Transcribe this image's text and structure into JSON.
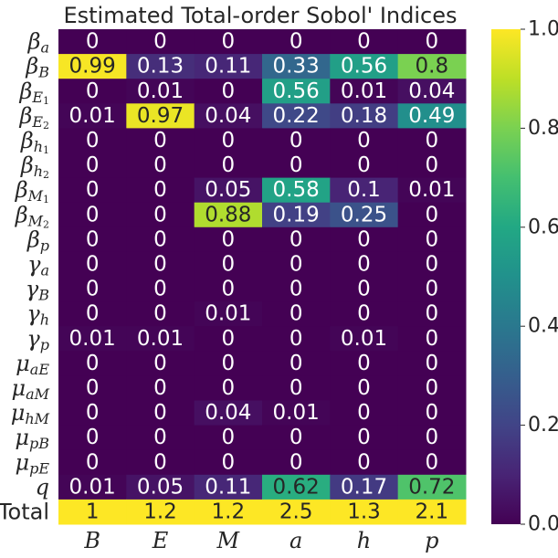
{
  "chart_data": {
    "type": "heatmap",
    "title": "Estimated Total-order Sobol' Indices",
    "columns": [
      "B",
      "E",
      "M",
      "a",
      "h",
      "p"
    ],
    "rows": [
      {
        "base": "β",
        "sub": "a",
        "subsub": ""
      },
      {
        "base": "β",
        "sub": "B",
        "subsub": ""
      },
      {
        "base": "β",
        "sub": "E",
        "subsub": "1"
      },
      {
        "base": "β",
        "sub": "E",
        "subsub": "2"
      },
      {
        "base": "β",
        "sub": "h",
        "subsub": "1"
      },
      {
        "base": "β",
        "sub": "h",
        "subsub": "2"
      },
      {
        "base": "β",
        "sub": "M",
        "subsub": "1"
      },
      {
        "base": "β",
        "sub": "M",
        "subsub": "2"
      },
      {
        "base": "β",
        "sub": "p",
        "subsub": ""
      },
      {
        "base": "γ",
        "sub": "a",
        "subsub": ""
      },
      {
        "base": "γ",
        "sub": "B",
        "subsub": ""
      },
      {
        "base": "γ",
        "sub": "h",
        "subsub": ""
      },
      {
        "base": "γ",
        "sub": "p",
        "subsub": ""
      },
      {
        "base": "μ",
        "sub": "aE",
        "subsub": ""
      },
      {
        "base": "μ",
        "sub": "aM",
        "subsub": ""
      },
      {
        "base": "μ",
        "sub": "hM",
        "subsub": ""
      },
      {
        "base": "μ",
        "sub": "pB",
        "subsub": ""
      },
      {
        "base": "μ",
        "sub": "pE",
        "subsub": ""
      },
      {
        "base": "q",
        "sub": "",
        "subsub": ""
      },
      {
        "base": "Total",
        "sub": "",
        "subsub": "",
        "plain": true
      }
    ],
    "values": [
      [
        0,
        0,
        0,
        0,
        0,
        0
      ],
      [
        0.99,
        0.13,
        0.11,
        0.33,
        0.56,
        0.8
      ],
      [
        0,
        0.01,
        0,
        0.56,
        0.01,
        0.04
      ],
      [
        0.01,
        0.97,
        0.04,
        0.22,
        0.18,
        0.49
      ],
      [
        0,
        0,
        0,
        0,
        0,
        0
      ],
      [
        0,
        0,
        0,
        0,
        0,
        0
      ],
      [
        0,
        0,
        0.05,
        0.58,
        0.1,
        0.01
      ],
      [
        0,
        0,
        0.88,
        0.19,
        0.25,
        0
      ],
      [
        0,
        0,
        0,
        0,
        0,
        0
      ],
      [
        0,
        0,
        0,
        0,
        0,
        0
      ],
      [
        0,
        0,
        0,
        0,
        0,
        0
      ],
      [
        0,
        0,
        0.01,
        0,
        0,
        0
      ],
      [
        0.01,
        0.01,
        0,
        0,
        0.01,
        0
      ],
      [
        0,
        0,
        0,
        0,
        0,
        0
      ],
      [
        0,
        0,
        0,
        0,
        0,
        0
      ],
      [
        0,
        0,
        0.04,
        0.01,
        0,
        0
      ],
      [
        0,
        0,
        0,
        0,
        0,
        0
      ],
      [
        0,
        0,
        0,
        0,
        0,
        0
      ],
      [
        0.01,
        0.05,
        0.11,
        0.62,
        0.17,
        0.72
      ],
      [
        1,
        1.2,
        1.2,
        2.5,
        1.3,
        2.1
      ]
    ],
    "color_range": [
      0,
      1
    ],
    "colormap": "viridis",
    "colorbar_ticks": [
      "0.0",
      "0.2",
      "0.4",
      "0.6",
      "0.8",
      "1.0"
    ],
    "colorbar_tick_values": [
      0,
      0.2,
      0.4,
      0.6,
      0.8,
      1.0
    ],
    "grid": false
  }
}
